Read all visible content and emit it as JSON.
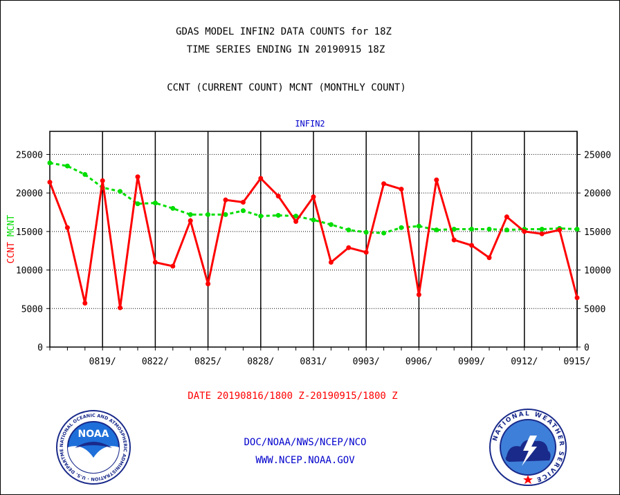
{
  "header": {
    "title_line1": "GDAS MODEL INFIN2 DATA COUNTS for 18Z",
    "title_line2": "TIME SERIES ENDING IN 20190915 18Z",
    "subtitle": "CCNT (CURRENT COUNT) MCNT (MONTHLY COUNT)",
    "panel_label": "INFIN2"
  },
  "footer": {
    "date_range": "DATE 20190816/1800 Z-20190915/1800 Z",
    "line1": "DOC/NOAA/NWS/NCEP/NCO",
    "line2": "WWW.NCEP.NOAA.GOV"
  },
  "logos": {
    "noaa_text": "NOAA",
    "noaa_ring": "NATIONAL OCEANIC AND ATMOSPHERIC ADMINISTRATION · U.S. DEPARTMENT OF COMMERCE ·",
    "nws_ring": "NATIONAL WEATHER SERVICE"
  },
  "colors": {
    "ccnt": "#ff0000",
    "mcnt": "#00dd00",
    "axis": "#000000",
    "grid": "#000000",
    "panel_label": "#0000cc",
    "footer": "#0000cc"
  },
  "chart_data": {
    "type": "line",
    "title": "GDAS MODEL INFIN2 DATA COUNTS for 18Z",
    "ylabel_ccnt": "CCNT",
    "ylabel_mcnt": "MCNT",
    "xlabel": "DATE 20190816/1800 Z-20190915/1800 Z",
    "ylim": [
      0,
      28000
    ],
    "yticks": [
      0,
      5000,
      10000,
      15000,
      20000,
      25000
    ],
    "ytick_labels": [
      "0",
      "5000",
      "10000",
      "15000",
      "20000",
      "25000"
    ],
    "xlim": [
      "0816",
      "0915"
    ],
    "xtick_labels": [
      "0819/",
      "0822/",
      "0825/",
      "0828/",
      "0831/",
      "0903/",
      "0906/",
      "0909/",
      "0912/",
      "0915/"
    ],
    "grid": true,
    "x": [
      "0816",
      "0817",
      "0818",
      "0819",
      "0820",
      "0821",
      "0822",
      "0823",
      "0824",
      "0825",
      "0826",
      "0827",
      "0828",
      "0829",
      "0830",
      "0831",
      "0901",
      "0902",
      "0903",
      "0904",
      "0905",
      "0906",
      "0907",
      "0908",
      "0909",
      "0910",
      "0911",
      "0912",
      "0913",
      "0914",
      "0915"
    ],
    "series": [
      {
        "name": "CCNT",
        "values": [
          21400,
          15500,
          5700,
          21600,
          5100,
          22100,
          11000,
          10500,
          16400,
          8200,
          19100,
          18800,
          21900,
          19600,
          16300,
          19500,
          11000,
          12900,
          12300,
          21200,
          20500,
          6800,
          21700,
          13900,
          13200,
          11600,
          16900,
          15000,
          14700,
          15200,
          6400
        ]
      },
      {
        "name": "MCNT",
        "values": [
          23900,
          23500,
          22400,
          20700,
          20200,
          18600,
          18700,
          18000,
          17200,
          17200,
          17200,
          17700,
          17000,
          17100,
          17000,
          16500,
          15900,
          15200,
          14900,
          14800,
          15500,
          15700,
          15200,
          15300,
          15300,
          15300,
          15200,
          15300,
          15300,
          15400,
          15300
        ]
      }
    ]
  }
}
